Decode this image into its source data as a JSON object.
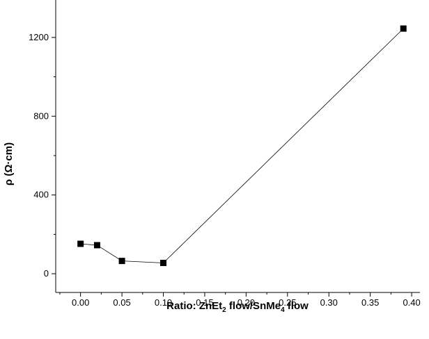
{
  "chart_data": {
    "type": "scatter",
    "xlabel": {
      "prefix": "Ratio: ZnEt",
      "sub1": "2",
      "middle": " flow/SnMe",
      "sub2": "4",
      "suffix": " flow"
    },
    "ylabel": "ρ (Ω·cm)",
    "xlim": [
      -0.03,
      0.41
    ],
    "ylim": [
      -95,
      1390
    ],
    "xticks": [
      0.0,
      0.05,
      0.1,
      0.15,
      0.2,
      0.25,
      0.3,
      0.35,
      0.4
    ],
    "xtick_labels": [
      "0.00",
      "0.05",
      "0.10",
      "0.15",
      "0.20",
      "0.25",
      "0.30",
      "0.35",
      "0.40"
    ],
    "yticks": [
      0,
      400,
      800,
      1200
    ],
    "ytick_labels": [
      "0",
      "400",
      "800",
      "1200"
    ],
    "grid": false,
    "marker": "square",
    "connected": true,
    "series": [
      {
        "x": [
          0.0,
          0.02,
          0.05,
          0.1,
          0.39
        ],
        "y": [
          152,
          145,
          65,
          55,
          1245
        ]
      }
    ]
  }
}
